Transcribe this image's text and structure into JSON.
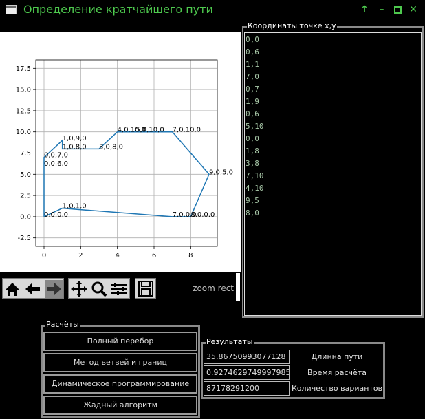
{
  "window": {
    "title": "Определение кратчайшего пути",
    "buttons": [
      "up-arrow",
      "minimize",
      "maximize",
      "close"
    ]
  },
  "coordinates": {
    "title": "Координаты точке x,y",
    "items": [
      "0,0",
      "0,6",
      "1,1",
      "7,0",
      "0,7",
      "1,9",
      "0,6",
      "5,10",
      "0,0",
      "1,8",
      "3,8",
      "7,10",
      "4,10",
      "9,5",
      "8,0"
    ]
  },
  "toolbar": {
    "zoom_mode": "zoom rect",
    "icons": [
      "home-icon",
      "back-icon",
      "forward-icon",
      "pan-icon",
      "zoom-icon",
      "configure-icon",
      "save-icon"
    ]
  },
  "calculations": {
    "title": "Расчёты",
    "buttons": [
      "Полный перебор",
      "Метод ветвей и границ",
      "Динамическое программирование",
      "Жадный алгоритм"
    ]
  },
  "results": {
    "title": "Результаты",
    "rows": [
      {
        "value": "35.86750993077128",
        "label": "Длинна пути"
      },
      {
        "value": "0.9274629749997985",
        "label": "Время расчёта"
      },
      {
        "value": "87178291200",
        "label": "Количество вариантов"
      }
    ]
  },
  "chart_data": {
    "type": "line",
    "xlim": [
      -0.45,
      9.45
    ],
    "ylim": [
      -3.5,
      18.5
    ],
    "xticks": [
      0,
      2,
      4,
      6,
      8
    ],
    "yticks": [
      -2.5,
      0.0,
      2.5,
      5.0,
      7.5,
      10.0,
      12.5,
      15.0,
      17.5
    ],
    "grid": true,
    "series": [
      {
        "x": [
          0,
          1,
          7,
          8,
          9,
          7,
          5,
          4,
          3,
          1,
          1,
          0,
          0,
          0,
          0
        ],
        "y": [
          0,
          1,
          0,
          0,
          5,
          10,
          10,
          10,
          8,
          8,
          9,
          7,
          6,
          6,
          0
        ],
        "color": "#1f77b4"
      }
    ],
    "annotations": [
      {
        "text": "0,0,0,0",
        "x": 0,
        "y": 0
      },
      {
        "text": "1,0,1,0",
        "x": 1,
        "y": 1
      },
      {
        "text": "7,0,0,0",
        "x": 7,
        "y": 0
      },
      {
        "text": "8,0,0,0",
        "x": 8,
        "y": 0
      },
      {
        "text": "9,0,5,0",
        "x": 9,
        "y": 5
      },
      {
        "text": "7,0,10,0",
        "x": 7,
        "y": 10
      },
      {
        "text": "5,0,10,0",
        "x": 5,
        "y": 10
      },
      {
        "text": "4,0,10,0",
        "x": 4,
        "y": 10
      },
      {
        "text": "3,0,8,0",
        "x": 3,
        "y": 8
      },
      {
        "text": "1,0,8,0",
        "x": 1,
        "y": 8
      },
      {
        "text": "1,0,9,0",
        "x": 1,
        "y": 9
      },
      {
        "text": "0,0,7,0",
        "x": 0,
        "y": 7
      },
      {
        "text": "0,0,6,0",
        "x": 0,
        "y": 6
      }
    ]
  }
}
